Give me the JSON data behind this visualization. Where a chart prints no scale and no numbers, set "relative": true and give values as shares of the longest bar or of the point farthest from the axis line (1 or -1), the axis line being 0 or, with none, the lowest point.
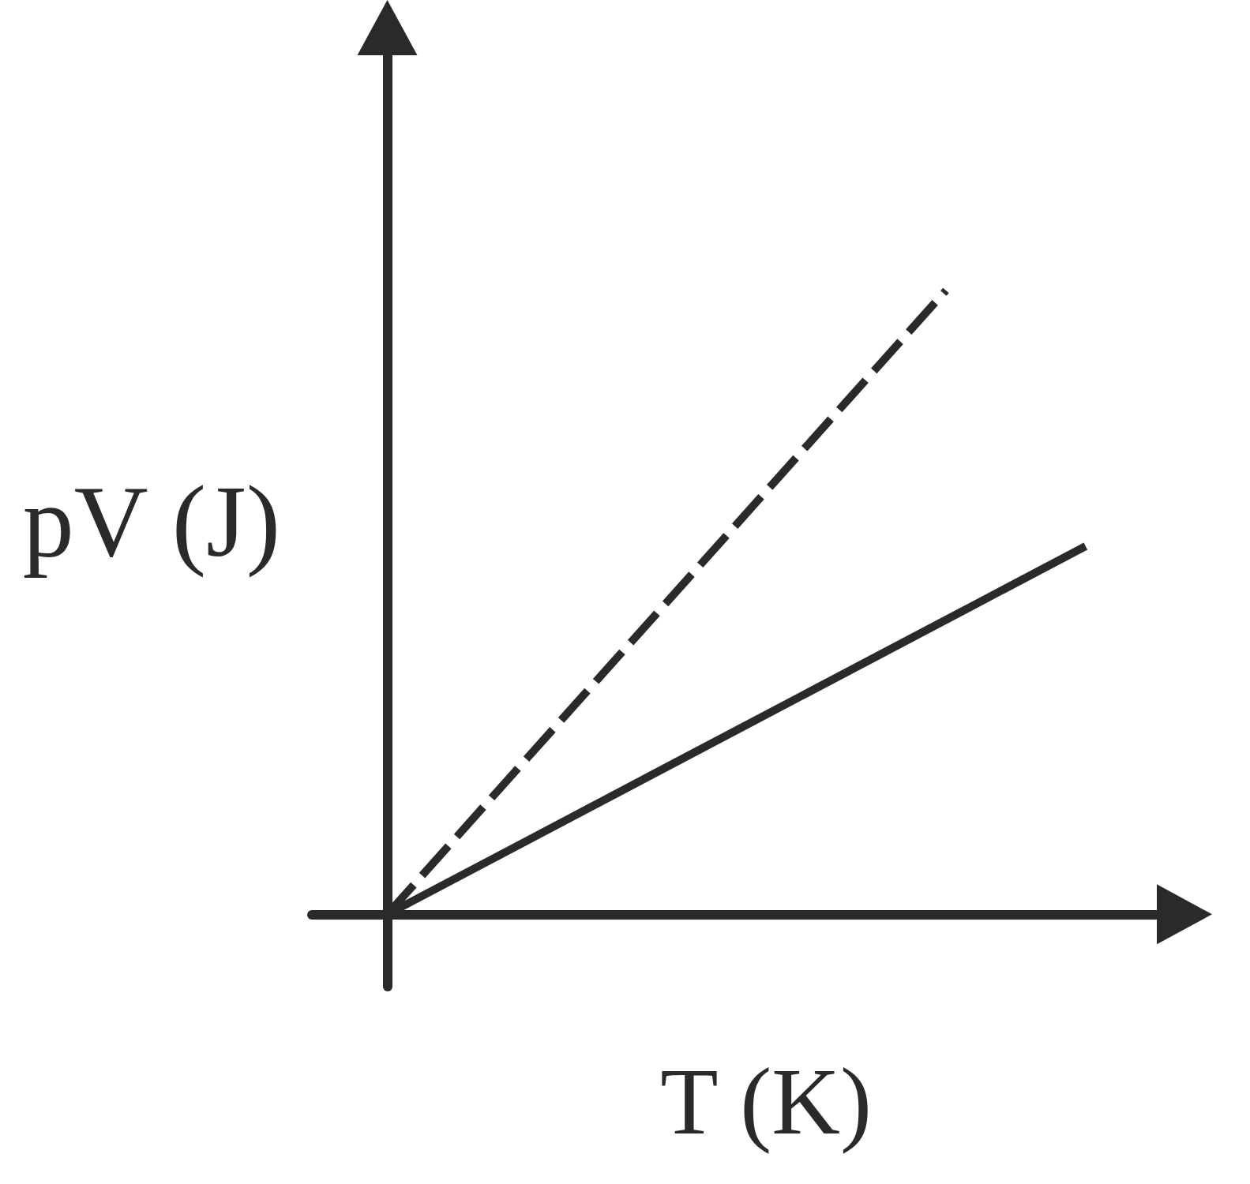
{
  "chart_data": {
    "type": "line",
    "relative": true,
    "xlabel": "T (K)",
    "ylabel": "pV (J)",
    "marker": "none",
    "categories": [
      null,
      null,
      null,
      null,
      null,
      null
    ],
    "series": [
      {
        "color": "#2b2a29",
        "line_style": "dashed",
        "values": [
          0,
          0.25,
          0.5,
          0.75,
          1,
          null
        ]
      },
      {
        "color": "#2b2a29",
        "line_style": "solid",
        "values": [
          0,
          0.118,
          0.236,
          0.354,
          0.472,
          0.59
        ]
      }
    ]
  }
}
